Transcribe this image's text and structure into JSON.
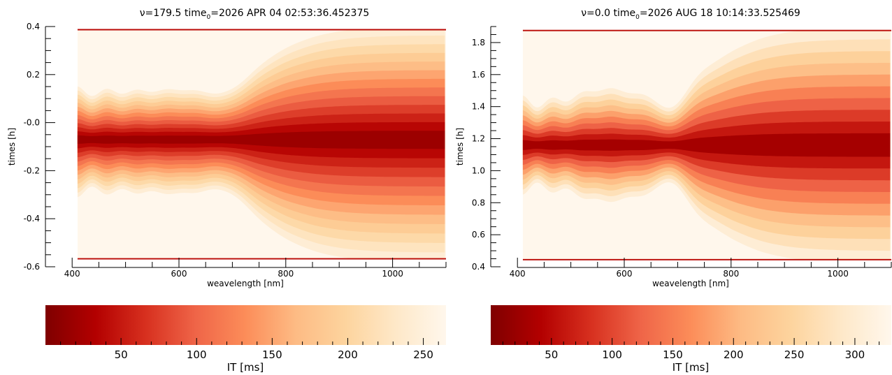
{
  "chart_data": [
    {
      "type": "contour",
      "title_prefix": "ν=",
      "title_nu": "179.5",
      "title_time_label": "time",
      "title_subscript": "0",
      "title_time_value": "=2026 APR 04 02:53:36.452375",
      "xlabel": "weavelength [nm]",
      "ylabel": "times [h]",
      "xlim": [
        350,
        1100
      ],
      "ylim": [
        -0.6,
        0.4
      ],
      "data_x_range": [
        410,
        1100
      ],
      "data_y_range": [
        -0.57,
        0.39
      ],
      "xticks": [
        400,
        600,
        800,
        1000
      ],
      "xtick_labels": [
        "400",
        "600",
        "800",
        "1000"
      ],
      "yticks": [
        -0.6,
        -0.4,
        -0.2,
        0.0,
        0.2,
        0.4
      ],
      "ytick_labels": [
        "-0.6",
        "-0.4",
        "-0.2",
        "-0.0",
        "0.2",
        "0.4"
      ],
      "center_time": -0.07,
      "level_count": 13,
      "colormap": "OrRd_r",
      "colorbar": {
        "label": "IT [ms]",
        "range": [
          0,
          265
        ],
        "ticks": [
          50,
          100,
          150,
          200,
          250
        ],
        "tick_labels": [
          "50",
          "100",
          "150",
          "200",
          "250"
        ]
      }
    },
    {
      "type": "contour",
      "title_prefix": "ν=",
      "title_nu": "0.0",
      "title_time_label": "time",
      "title_subscript": "0",
      "title_time_value": "=2026 AUG 18 10:14:33.525469",
      "xlabel": "weavelength [nm]",
      "ylabel": "times [h]",
      "xlim": [
        350,
        1100
      ],
      "ylim": [
        0.4,
        1.9
      ],
      "data_x_range": [
        410,
        1100
      ],
      "data_y_range": [
        0.44,
        1.88
      ],
      "xticks": [
        400,
        600,
        800,
        1000
      ],
      "xtick_labels": [
        "400",
        "600",
        "800",
        "1000"
      ],
      "yticks": [
        0.4,
        0.6,
        0.8,
        1.0,
        1.2,
        1.4,
        1.6,
        1.8
      ],
      "ytick_labels": [
        "0.4",
        "0.6",
        "0.8",
        "1.0",
        "1.2",
        "1.4",
        "1.6",
        "1.8"
      ],
      "center_time": 1.16,
      "level_count": 10,
      "colormap": "OrRd_r",
      "colorbar": {
        "label": "IT [ms]",
        "range": [
          0,
          330
        ],
        "ticks": [
          50,
          100,
          150,
          200,
          250,
          300
        ],
        "tick_labels": [
          "50",
          "100",
          "150",
          "200",
          "250",
          "300"
        ]
      }
    }
  ],
  "colors": {
    "colormap_stops": [
      "#7f0000",
      "#b30000",
      "#d7301f",
      "#ef6548",
      "#fc8d59",
      "#fdbb84",
      "#fdd49e",
      "#fee8c8",
      "#fff7ec"
    ]
  }
}
